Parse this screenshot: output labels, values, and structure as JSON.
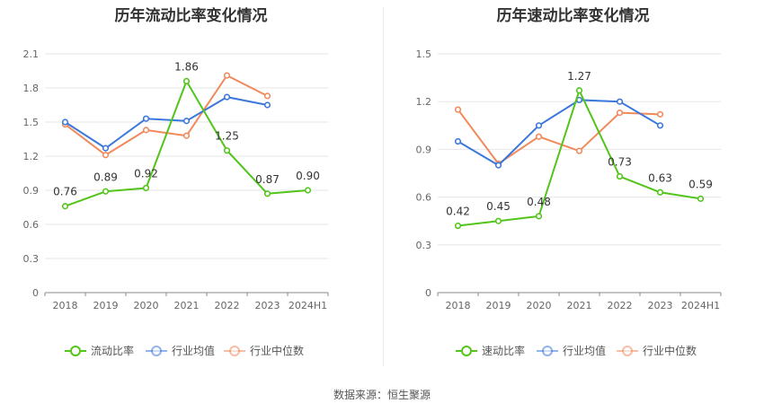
{
  "source": "数据来源：恒生聚源",
  "chart_data": [
    {
      "type": "line",
      "title": "历年流动比率变化情况",
      "categories": [
        "2018",
        "2019",
        "2020",
        "2021",
        "2022",
        "2023",
        "2024H1"
      ],
      "ylim": [
        0,
        2.1
      ],
      "yticks": [
        "0",
        "0.3",
        "0.6",
        "0.9",
        "1.2",
        "1.5",
        "1.8",
        "2.1"
      ],
      "grid": true,
      "legend_position": "bottom",
      "series": [
        {
          "name": "流动比率",
          "color": "#52c41a",
          "labeled": true,
          "values": [
            0.76,
            0.89,
            0.92,
            1.86,
            1.25,
            0.87,
            0.9
          ],
          "labels": [
            "0.76",
            "0.89",
            "0.92",
            "1.86",
            "1.25",
            "0.87",
            "0.90"
          ]
        },
        {
          "name": "行业均值",
          "color": "#3b78db",
          "labeled": false,
          "values": [
            1.5,
            1.27,
            1.53,
            1.51,
            1.72,
            1.65,
            null
          ]
        },
        {
          "name": "行业中位数",
          "color": "#f08a5d",
          "labeled": false,
          "values": [
            1.48,
            1.21,
            1.43,
            1.38,
            1.91,
            1.73,
            null
          ]
        }
      ]
    },
    {
      "type": "line",
      "title": "历年速动比率变化情况",
      "categories": [
        "2018",
        "2019",
        "2020",
        "2021",
        "2022",
        "2023",
        "2024H1"
      ],
      "ylim": [
        0,
        1.5
      ],
      "yticks": [
        "0",
        "0.3",
        "0.6",
        "0.9",
        "1.2",
        "1.5"
      ],
      "grid": true,
      "legend_position": "bottom",
      "series": [
        {
          "name": "速动比率",
          "color": "#52c41a",
          "labeled": true,
          "values": [
            0.42,
            0.45,
            0.48,
            1.27,
            0.73,
            0.63,
            0.59
          ],
          "labels": [
            "0.42",
            "0.45",
            "0.48",
            "1.27",
            "0.73",
            "0.63",
            "0.59"
          ]
        },
        {
          "name": "行业均值",
          "color": "#3b78db",
          "labeled": false,
          "values": [
            0.95,
            0.8,
            1.05,
            1.21,
            1.2,
            1.05,
            null
          ]
        },
        {
          "name": "行业中位数",
          "color": "#f08a5d",
          "labeled": false,
          "values": [
            1.15,
            0.81,
            0.98,
            0.89,
            1.13,
            1.12,
            null
          ]
        }
      ]
    }
  ]
}
